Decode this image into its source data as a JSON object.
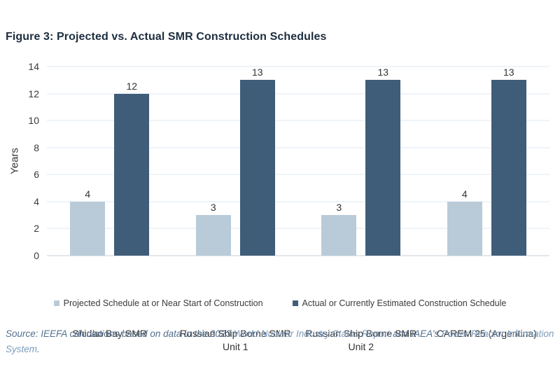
{
  "title": "Figure 3: Projected vs. Actual SMR Construction Schedules",
  "chart_data": {
    "type": "bar",
    "categories": [
      "Shidao Bay SMR",
      "Russian Ship Borne SMR Unit 1",
      "Russian Ship Borne SMR Unit 2",
      "CAREM 25 (Argentina)"
    ],
    "series": [
      {
        "name": "Projected Schedule at or Near Start of Construction",
        "color": "#b9cbd8",
        "values": [
          4,
          3,
          3,
          4
        ]
      },
      {
        "name": "Actual or Currently Estimated Construction Schedule",
        "color": "#3f5d79",
        "values": [
          12,
          13,
          13,
          13
        ]
      }
    ],
    "title": "Figure 3: Projected vs. Actual SMR Construction Schedules",
    "xlabel": "",
    "ylabel": "Years",
    "ylim": [
      0,
      14
    ],
    "yticks": [
      0,
      2,
      4,
      6,
      8,
      10,
      12,
      14
    ],
    "grid": true,
    "legend_position": "bottom",
    "colors": {
      "projected": "#b9cbd8",
      "actual": "#3f5d79",
      "gridline": "#dfe8f0",
      "axis": "#c7d1da"
    }
  },
  "footer": {
    "segments": [
      {
        "text": "Source: IEEFA calculations based on data in the 2023 "
      },
      {
        "text": "World Nuclear Industry Status Report"
      },
      {
        "text": " and IAEA’s "
      },
      {
        "text": "Power Reactor Information System"
      },
      {
        "text": "."
      }
    ]
  }
}
